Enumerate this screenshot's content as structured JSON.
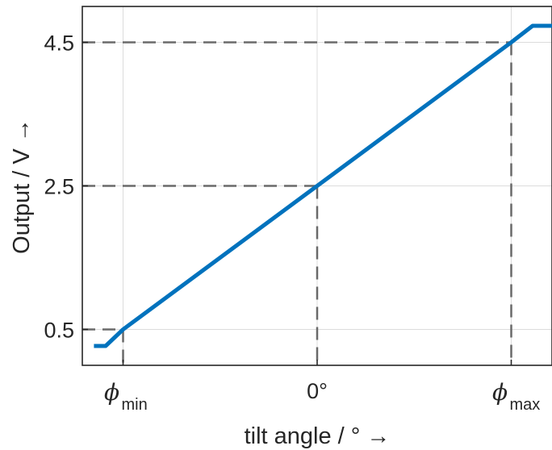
{
  "chart_data": {
    "type": "line",
    "xlabel": "tilt angle / ° →",
    "ylabel": "Output / V →",
    "x_ticks": [
      {
        "value": -10,
        "symbol": "ϕ",
        "sub": "min"
      },
      {
        "value": 0,
        "text": "0°"
      },
      {
        "value": 10,
        "symbol": "ϕ",
        "sub": "max"
      }
    ],
    "y_ticks": [
      "0.5",
      "2.5",
      "4.5"
    ],
    "xlim": [
      -12.1,
      12.1
    ],
    "ylim": [
      0.0,
      5.0
    ],
    "grid": true,
    "series": [
      {
        "color": "#0072BD",
        "x": [
          -11.5,
          -10.9,
          -10.0,
          10.0,
          11.1,
          12.1
        ],
        "y": [
          0.27,
          0.27,
          0.5,
          4.5,
          4.73,
          4.73
        ]
      }
    ],
    "reference_lines": [
      {
        "x": -10,
        "y": 0.5
      },
      {
        "x": 0,
        "y": 2.5
      },
      {
        "x": 10,
        "y": 4.5
      }
    ]
  }
}
